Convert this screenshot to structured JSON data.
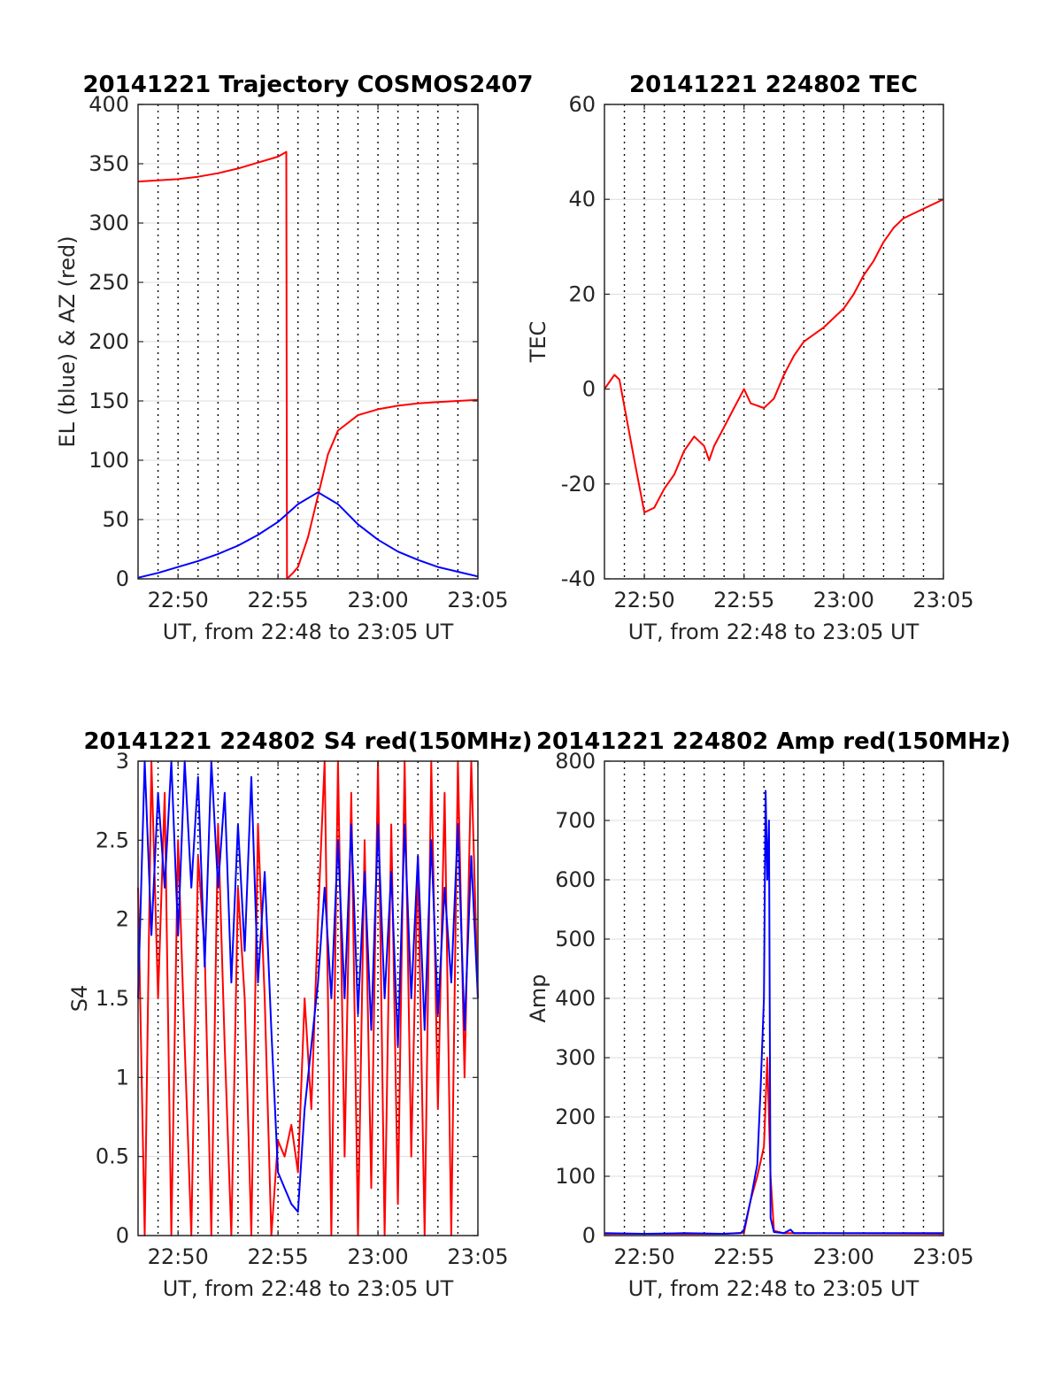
{
  "chart_data": [
    {
      "id": "trajectory",
      "type": "line",
      "title": "20141221 Trajectory COSMOS2407",
      "xlabel": "UT, from 22:48 to 23:05 UT",
      "ylabel": "EL (blue) & AZ (red)",
      "xlim": [
        "22:48",
        "23:05"
      ],
      "x_ticks": [
        "22:50",
        "22:55",
        "23:00",
        "23:05"
      ],
      "minor_x_grid_interval_min": 1,
      "ylim": [
        0,
        400
      ],
      "y_ticks": [
        0,
        50,
        100,
        150,
        200,
        250,
        300,
        350,
        400
      ],
      "grid": true,
      "series": [
        {
          "color": "#ff0000",
          "points": [
            [
              "22:48",
              335
            ],
            [
              "22:49",
              336
            ],
            [
              "22:50",
              337
            ],
            [
              "22:51",
              339
            ],
            [
              "22:52",
              342
            ],
            [
              "22:53",
              346
            ],
            [
              "22:54",
              351
            ],
            [
              "22:55",
              356
            ],
            [
              "22:55:25",
              360
            ],
            [
              "22:55:27",
              0
            ],
            [
              "22:55:45",
              5
            ],
            [
              "22:56",
              10
            ],
            [
              "22:56:30",
              35
            ],
            [
              "22:57",
              70
            ],
            [
              "22:57:30",
              105
            ],
            [
              "22:58",
              125
            ],
            [
              "22:59",
              138
            ],
            [
              "23:00",
              143
            ],
            [
              "23:01",
              146
            ],
            [
              "23:02",
              148
            ],
            [
              "23:03",
              149
            ],
            [
              "23:04",
              150
            ],
            [
              "23:05",
              151
            ]
          ]
        },
        {
          "color": "#0000ff",
          "points": [
            [
              "22:48",
              1
            ],
            [
              "22:49",
              5
            ],
            [
              "22:50",
              10
            ],
            [
              "22:51",
              15
            ],
            [
              "22:52",
              21
            ],
            [
              "22:53",
              28
            ],
            [
              "22:54",
              37
            ],
            [
              "22:55",
              48
            ],
            [
              "22:56",
              63
            ],
            [
              "22:57",
              73
            ],
            [
              "22:58",
              63
            ],
            [
              "22:59",
              46
            ],
            [
              "23:00",
              33
            ],
            [
              "23:01",
              23
            ],
            [
              "23:02",
              16
            ],
            [
              "23:03",
              10
            ],
            [
              "23:04",
              6
            ],
            [
              "23:05",
              2
            ]
          ]
        }
      ]
    },
    {
      "id": "tec",
      "type": "line",
      "title": "20141221 224802 TEC",
      "xlabel": "UT, from 22:48 to 23:05 UT",
      "ylabel": "TEC",
      "xlim": [
        "22:48",
        "23:05"
      ],
      "x_ticks": [
        "22:50",
        "22:55",
        "23:00",
        "23:05"
      ],
      "minor_x_grid_interval_min": 1,
      "ylim": [
        -40,
        60
      ],
      "y_ticks": [
        -40,
        -20,
        0,
        20,
        40,
        60
      ],
      "grid": true,
      "series": [
        {
          "color": "#ff0000",
          "points": [
            [
              "22:48",
              0
            ],
            [
              "22:48:30",
              3
            ],
            [
              "22:48:45",
              2
            ],
            [
              "22:49:30",
              -15
            ],
            [
              "22:50",
              -26
            ],
            [
              "22:50:30",
              -25
            ],
            [
              "22:51",
              -21
            ],
            [
              "22:51:30",
              -18
            ],
            [
              "22:52",
              -13
            ],
            [
              "22:52:30",
              -10
            ],
            [
              "22:53",
              -12
            ],
            [
              "22:53:15",
              -15
            ],
            [
              "22:53:30",
              -12
            ],
            [
              "22:54",
              -8
            ],
            [
              "22:54:30",
              -4
            ],
            [
              "22:55",
              0
            ],
            [
              "22:55:20",
              -3
            ],
            [
              "22:56",
              -4
            ],
            [
              "22:56:30",
              -2
            ],
            [
              "22:57",
              3
            ],
            [
              "22:57:30",
              7
            ],
            [
              "22:58",
              10
            ],
            [
              "22:59",
              13
            ],
            [
              "23:00",
              17
            ],
            [
              "23:00:30",
              20
            ],
            [
              "23:01",
              24
            ],
            [
              "23:01:30",
              27
            ],
            [
              "23:02",
              31
            ],
            [
              "23:02:30",
              34
            ],
            [
              "23:03",
              36
            ],
            [
              "23:04",
              38
            ],
            [
              "23:05",
              40
            ]
          ]
        }
      ]
    },
    {
      "id": "s4",
      "type": "line",
      "title": "20141221 224802 S4 red(150MHz)",
      "xlabel": "UT, from 22:48 to 23:05 UT",
      "ylabel": "S4",
      "xlim": [
        "22:48",
        "23:05"
      ],
      "x_ticks": [
        "22:50",
        "22:55",
        "23:00",
        "23:05"
      ],
      "minor_x_grid_interval_min": 1,
      "ylim": [
        0,
        3
      ],
      "y_ticks": [
        0,
        0.5,
        1,
        1.5,
        2,
        2.5,
        3
      ],
      "grid": true,
      "series": [
        {
          "color": "#ff0000",
          "points": [
            [
              "22:48",
              2.2
            ],
            [
              "22:48:20",
              0
            ],
            [
              "22:48:40",
              3
            ],
            [
              "22:49",
              1.5
            ],
            [
              "22:49:20",
              2.8
            ],
            [
              "22:49:40",
              0
            ],
            [
              "22:50",
              2.5
            ],
            [
              "22:50:20",
              1.2
            ],
            [
              "22:50:40",
              0
            ],
            [
              "22:51",
              2.4
            ],
            [
              "22:51:20",
              1.8
            ],
            [
              "22:51:40",
              0
            ],
            [
              "22:52",
              2.6
            ],
            [
              "22:52:20",
              1.2
            ],
            [
              "22:52:40",
              0
            ],
            [
              "22:53",
              2.2
            ],
            [
              "22:53:20",
              1.5
            ],
            [
              "22:53:40",
              0
            ],
            [
              "22:54",
              2.6
            ],
            [
              "22:54:20",
              1.5
            ],
            [
              "22:54:40",
              0
            ],
            [
              "22:55",
              0.6
            ],
            [
              "22:55:20",
              0.5
            ],
            [
              "22:55:40",
              0.7
            ],
            [
              "22:56",
              0.4
            ],
            [
              "22:56:20",
              1.5
            ],
            [
              "22:56:40",
              0.8
            ],
            [
              "22:57",
              2.0
            ],
            [
              "22:57:20",
              3
            ],
            [
              "22:57:40",
              0
            ],
            [
              "22:58",
              3
            ],
            [
              "22:58:20",
              0.5
            ],
            [
              "22:58:40",
              2.8
            ],
            [
              "22:59",
              0
            ],
            [
              "22:59:20",
              2.5
            ],
            [
              "22:59:40",
              0.3
            ],
            [
              "23:00",
              3
            ],
            [
              "23:00:20",
              0
            ],
            [
              "23:00:40",
              2.6
            ],
            [
              "23:01",
              0.2
            ],
            [
              "23:01:20",
              3
            ],
            [
              "23:01:40",
              0.5
            ],
            [
              "23:02",
              2.4
            ],
            [
              "23:02:20",
              0
            ],
            [
              "23:02:40",
              3
            ],
            [
              "23:03",
              0.8
            ],
            [
              "23:03:20",
              2.8
            ],
            [
              "23:03:40",
              0
            ],
            [
              "23:04",
              3
            ],
            [
              "23:04:20",
              1.0
            ],
            [
              "23:04:40",
              3
            ],
            [
              "23:05",
              1.5
            ]
          ]
        },
        {
          "color": "#0000ff",
          "points": [
            [
              "22:48",
              1.5
            ],
            [
              "22:48:20",
              3
            ],
            [
              "22:48:40",
              1.9
            ],
            [
              "22:49",
              2.8
            ],
            [
              "22:49:20",
              2.2
            ],
            [
              "22:49:40",
              3
            ],
            [
              "22:50",
              1.9
            ],
            [
              "22:50:20",
              3
            ],
            [
              "22:50:40",
              2.2
            ],
            [
              "22:51",
              2.9
            ],
            [
              "22:51:20",
              1.7
            ],
            [
              "22:51:40",
              3
            ],
            [
              "22:52",
              2.2
            ],
            [
              "22:52:20",
              2.8
            ],
            [
              "22:52:40",
              1.6
            ],
            [
              "22:53",
              2.6
            ],
            [
              "22:53:20",
              1.8
            ],
            [
              "22:53:40",
              2.9
            ],
            [
              "22:54",
              1.6
            ],
            [
              "22:54:20",
              2.3
            ],
            [
              "22:54:40",
              1.3
            ],
            [
              "22:55",
              0.4
            ],
            [
              "22:55:20",
              0.3
            ],
            [
              "22:55:40",
              0.2
            ],
            [
              "22:56",
              0.15
            ],
            [
              "22:56:20",
              0.8
            ],
            [
              "22:56:40",
              1.2
            ],
            [
              "22:57",
              1.6
            ],
            [
              "22:57:20",
              2.2
            ],
            [
              "22:57:40",
              1.5
            ],
            [
              "22:58",
              2.5
            ],
            [
              "22:58:20",
              1.5
            ],
            [
              "22:58:40",
              2.6
            ],
            [
              "22:59",
              1.4
            ],
            [
              "22:59:20",
              2.3
            ],
            [
              "22:59:40",
              1.3
            ],
            [
              "23:00",
              2.6
            ],
            [
              "23:00:20",
              1.5
            ],
            [
              "23:00:40",
              2.3
            ],
            [
              "23:01",
              1.2
            ],
            [
              "23:01:20",
              2.6
            ],
            [
              "23:01:40",
              1.5
            ],
            [
              "23:02",
              2.4
            ],
            [
              "23:02:20",
              1.3
            ],
            [
              "23:02:40",
              2.5
            ],
            [
              "23:03",
              1.4
            ],
            [
              "23:03:20",
              2.2
            ],
            [
              "23:03:40",
              1.6
            ],
            [
              "23:04",
              2.6
            ],
            [
              "23:04:20",
              1.3
            ],
            [
              "23:04:40",
              2.4
            ],
            [
              "23:05",
              1.5
            ]
          ]
        }
      ]
    },
    {
      "id": "amp",
      "type": "line",
      "title": "20141221 224802 Amp red(150MHz)",
      "xlabel": "UT, from 22:48 to 23:05 UT",
      "ylabel": "Amp",
      "xlim": [
        "22:48",
        "23:05"
      ],
      "x_ticks": [
        "22:50",
        "22:55",
        "23:00",
        "23:05"
      ],
      "minor_x_grid_interval_min": 1,
      "ylim": [
        0,
        800
      ],
      "y_ticks": [
        0,
        100,
        200,
        300,
        400,
        500,
        600,
        700,
        800
      ],
      "grid": true,
      "series": [
        {
          "color": "#ff0000",
          "points": [
            [
              "22:48",
              3
            ],
            [
              "22:54",
              3
            ],
            [
              "22:55",
              5
            ],
            [
              "22:55:20",
              60
            ],
            [
              "22:55:40",
              100
            ],
            [
              "22:56",
              150
            ],
            [
              "22:56:10",
              300
            ],
            [
              "22:56:15",
              200
            ],
            [
              "22:56:20",
              100
            ],
            [
              "22:56:30",
              8
            ],
            [
              "22:57",
              4
            ],
            [
              "23:05",
              3
            ]
          ]
        },
        {
          "color": "#0000ff",
          "points": [
            [
              "22:48",
              4
            ],
            [
              "22:50",
              3
            ],
            [
              "22:52",
              4
            ],
            [
              "22:54",
              3
            ],
            [
              "22:54:50",
              4
            ],
            [
              "22:55",
              10
            ],
            [
              "22:55:20",
              60
            ],
            [
              "22:55:40",
              120
            ],
            [
              "22:55:50",
              250
            ],
            [
              "22:56",
              400
            ],
            [
              "22:56:05",
              750
            ],
            [
              "22:56:10",
              600
            ],
            [
              "22:56:15",
              700
            ],
            [
              "22:56:20",
              30
            ],
            [
              "22:56:30",
              6
            ],
            [
              "22:57",
              4
            ],
            [
              "22:57:20",
              10
            ],
            [
              "22:57:30",
              4
            ],
            [
              "23:00",
              4
            ],
            [
              "23:05",
              4
            ]
          ]
        }
      ]
    }
  ]
}
